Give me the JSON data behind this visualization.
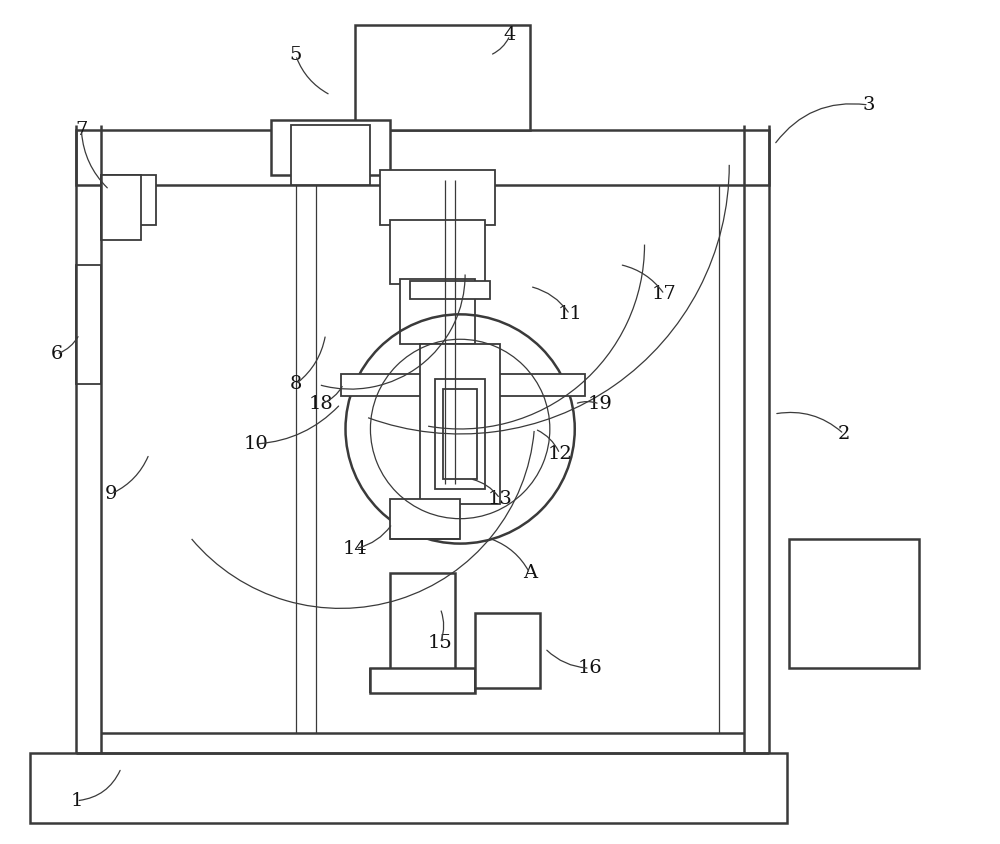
{
  "bg_color": "#ffffff",
  "line_color": "#3a3a3a",
  "lw_thick": 1.8,
  "lw_med": 1.3,
  "lw_thin": 0.9,
  "fig_width": 10.0,
  "fig_height": 8.44
}
